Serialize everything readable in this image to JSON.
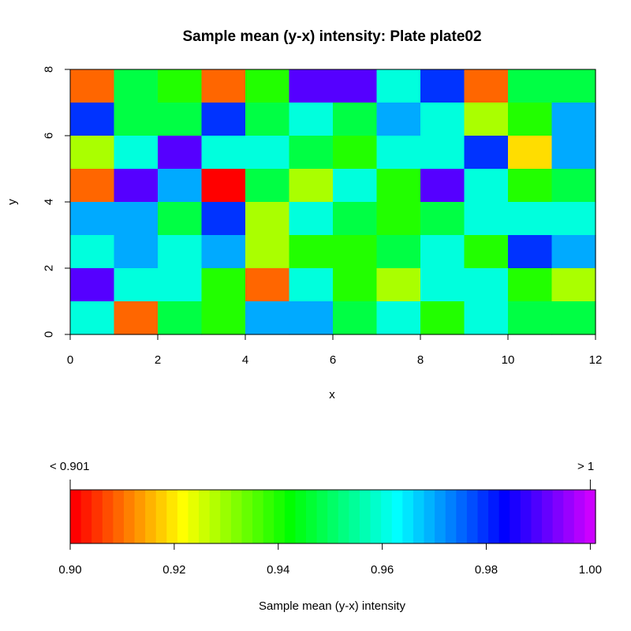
{
  "chart_data": {
    "type": "heatmap",
    "title": "Sample mean (y-x) intensity:  Plate plate02",
    "xlabel": "x",
    "ylabel": "y",
    "xlim": [
      0,
      12
    ],
    "ylim": [
      0,
      8
    ],
    "x_ticks": [
      "0",
      "2",
      "4",
      "6",
      "8",
      "10",
      "12"
    ],
    "y_ticks": [
      "0",
      "2",
      "4",
      "6",
      "8"
    ],
    "colors_by_row_from_top": [
      [
        "#ff6600",
        "#00ff44",
        "#22ff00",
        "#ff6600",
        "#22ff00",
        "#5500ff",
        "#5500ff",
        "#00ffdd",
        "#0033ff",
        "#ff6600",
        "#00ff44",
        "#00ff44"
      ],
      [
        "#0033ff",
        "#00ff44",
        "#00ff44",
        "#0033ff",
        "#00ff44",
        "#00ffdd",
        "#00ff44",
        "#00aaff",
        "#00ffdd",
        "#aaff00",
        "#22ff00",
        "#00aaff"
      ],
      [
        "#aaff00",
        "#00ffdd",
        "#5500ff",
        "#00ffdd",
        "#00ffdd",
        "#00ff44",
        "#22ff00",
        "#00ffdd",
        "#00ffdd",
        "#0033ff",
        "#ffdd00",
        "#00aaff"
      ],
      [
        "#ff6600",
        "#5500ff",
        "#00aaff",
        "#ff0000",
        "#00ff44",
        "#aaff00",
        "#00ffdd",
        "#22ff00",
        "#5500ff",
        "#00ffdd",
        "#22ff00",
        "#00ff44"
      ],
      [
        "#00aaff",
        "#00aaff",
        "#00ff44",
        "#0033ff",
        "#aaff00",
        "#00ffdd",
        "#00ff44",
        "#22ff00",
        "#00ff44",
        "#00ffdd",
        "#00ffdd",
        "#00ffdd"
      ],
      [
        "#00ffdd",
        "#00aaff",
        "#00ffdd",
        "#00aaff",
        "#aaff00",
        "#22ff00",
        "#22ff00",
        "#00ff44",
        "#00ffdd",
        "#22ff00",
        "#0033ff",
        "#00aaff"
      ],
      [
        "#5500ff",
        "#00ffdd",
        "#00ffdd",
        "#22ff00",
        "#ff6600",
        "#00ffdd",
        "#22ff00",
        "#aaff00",
        "#00ffdd",
        "#00ffdd",
        "#22ff00",
        "#aaff00"
      ],
      [
        "#00ffdd",
        "#ff6600",
        "#00ff44",
        "#22ff00",
        "#00aaff",
        "#00aaff",
        "#00ff44",
        "#00ffdd",
        "#22ff00",
        "#00ffdd",
        "#00ff44",
        "#00ff44"
      ]
    ],
    "colorbar": {
      "min_label": "<  0.901",
      "max_label": ">  1",
      "range": [
        0.9,
        1.001
      ],
      "tick_values": [
        0.9,
        0.92,
        0.94,
        0.96,
        0.98,
        1.0
      ],
      "tick_labels": [
        "0.90",
        "0.92",
        "0.94",
        "0.96",
        "0.98",
        "1.00"
      ],
      "label": "Sample mean (y-x) intensity",
      "colors": [
        "#ff0000",
        "#ff1a00",
        "#ff3300",
        "#ff4d00",
        "#ff6600",
        "#ff8000",
        "#ff9900",
        "#ffb300",
        "#ffcc00",
        "#ffe600",
        "#ffff00",
        "#e6ff00",
        "#ccff00",
        "#b3ff00",
        "#99ff00",
        "#80ff00",
        "#66ff00",
        "#4dff00",
        "#33ff00",
        "#1aff00",
        "#00ff00",
        "#00ff1a",
        "#00ff33",
        "#00ff4d",
        "#00ff66",
        "#00ff80",
        "#00ff99",
        "#00ffb3",
        "#00ffcc",
        "#00ffe6",
        "#00ffff",
        "#00e6ff",
        "#00ccff",
        "#00b3ff",
        "#0099ff",
        "#0080ff",
        "#0066ff",
        "#004dff",
        "#0033ff",
        "#001aff",
        "#0000ff",
        "#1a00ff",
        "#3300ff",
        "#4d00ff",
        "#6600ff",
        "#8000ff",
        "#9900ff",
        "#b300ff",
        "#cc00ff"
      ]
    }
  }
}
